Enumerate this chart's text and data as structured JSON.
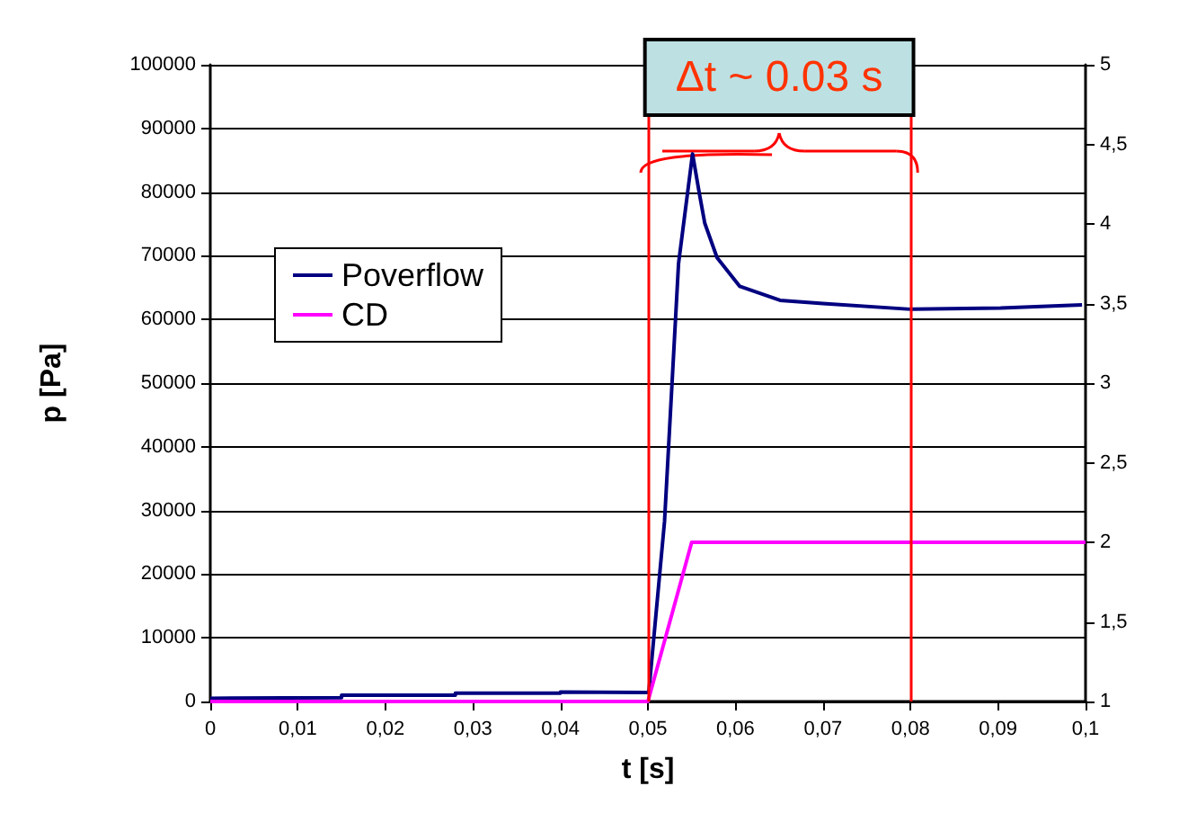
{
  "chart_data": {
    "type": "line",
    "xlabel": "t [s]",
    "ylabel": "p [Pa]",
    "annotations": [
      "Δt ~ 0.03 s"
    ],
    "xlim": [
      0,
      0.1
    ],
    "xticks": [
      0,
      {
        "value": 0.01,
        "label": "0,01"
      },
      {
        "value": 0.02,
        "label": "0,02"
      },
      {
        "value": 0.03,
        "label": "0,03"
      },
      {
        "value": 0.04,
        "label": "0,04"
      },
      {
        "value": 0.05,
        "label": "0,05"
      },
      {
        "value": 0.06,
        "label": "0,06"
      },
      {
        "value": 0.07,
        "label": "0,07"
      },
      {
        "value": 0.08,
        "label": "0,08"
      },
      {
        "value": 0.09,
        "label": "0,09"
      },
      {
        "value": 0.1,
        "label": "0,1"
      }
    ],
    "ylim": [
      0,
      100000
    ],
    "yticks": [
      0,
      10000,
      20000,
      30000,
      40000,
      50000,
      60000,
      70000,
      80000,
      90000,
      100000
    ],
    "y2lim": [
      1,
      5
    ],
    "y2ticks": [
      1,
      {
        "value": 1.5,
        "label": "1,5"
      },
      2,
      {
        "value": 2.5,
        "label": "2,5"
      },
      3,
      {
        "value": 3.5,
        "label": "3,5"
      },
      4,
      {
        "value": 4.5,
        "label": "4,5"
      },
      5
    ],
    "grid": "y",
    "legend": "left",
    "marker": "none",
    "line_style": "solid",
    "ref_lines": [
      {
        "axis": "x",
        "value": 0.05,
        "color": "#ff0000"
      },
      {
        "axis": "x",
        "value": 0.08,
        "color": "#ff0000"
      }
    ],
    "series": [
      {
        "name": "Poverflow",
        "color": "#000080",
        "x": [
          0,
          0.015,
          0.015,
          0.028,
          0.028,
          0.04,
          0.04,
          0.0498,
          0.0501,
          0.0519,
          0.0535,
          0.0551,
          0.0559,
          0.0565,
          0.0579,
          0.0605,
          0.0651,
          0.07,
          0.08,
          0.0903,
          0.0996
        ],
        "values": [
          500,
          600,
          1000,
          1000,
          1300,
          1300,
          1500,
          1400,
          1400,
          28300,
          68800,
          86000,
          79600,
          75100,
          69700,
          65200,
          63000,
          62500,
          61600,
          61800,
          62300
        ]
      },
      {
        "name": "CD",
        "color": "#ff00ff",
        "axis": "y2",
        "x": [
          0,
          0.05,
          0.055,
          0.1
        ],
        "values": [
          1,
          1,
          2,
          2
        ]
      }
    ]
  }
}
